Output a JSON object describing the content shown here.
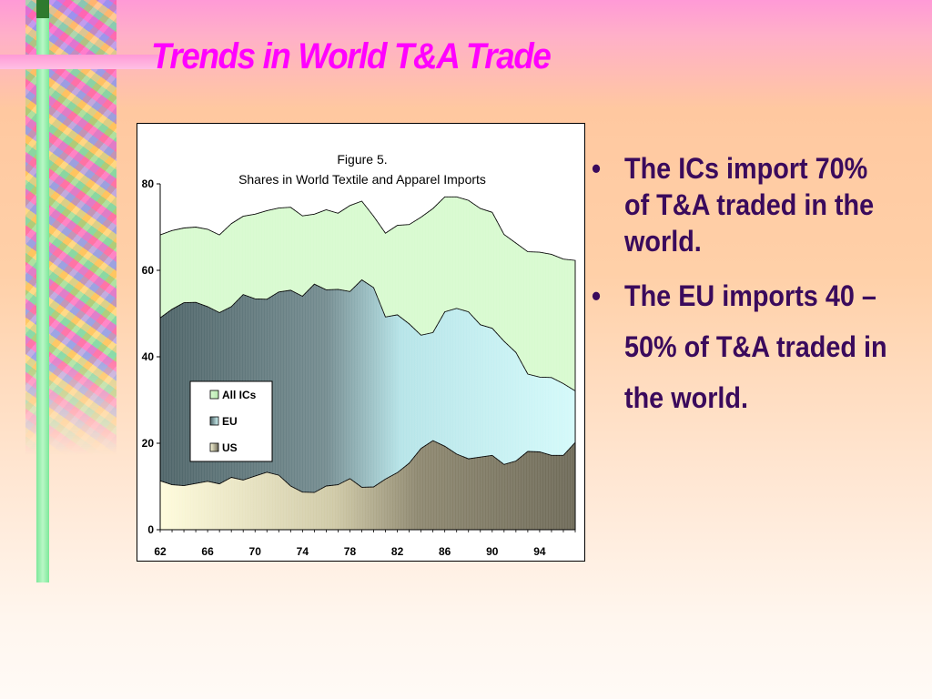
{
  "slide": {
    "title": "Trends in World T&A Trade",
    "bullets": [
      "The ICs import 70% of T&A traded in the world.",
      "The EU imports 40 – 50% of T&A traded in the world."
    ],
    "bullet_glyph": "•"
  },
  "colors": {
    "title": "#ff00ff",
    "bullet_text": "#3a0a5c",
    "all_ics": "#d8fad0",
    "eu_light": "#d4fafa",
    "eu_dark": "#4e6468",
    "us_light": "#fffcdc",
    "us_dark": "#6e6a58"
  },
  "chart_data": {
    "type": "area",
    "stacked": false,
    "title": "Figure 5.",
    "subtitle": "Shares in World Textile and Apparel Imports",
    "xlabel": "",
    "ylabel": "",
    "x": [
      62,
      63,
      64,
      65,
      66,
      67,
      68,
      69,
      70,
      71,
      72,
      73,
      74,
      75,
      76,
      77,
      78,
      79,
      80,
      81,
      82,
      83,
      84,
      85,
      86,
      87,
      88,
      89,
      90,
      91,
      92,
      93,
      94,
      95,
      96,
      97
    ],
    "x_tick_labels": [
      "62",
      "66",
      "70",
      "74",
      "78",
      "82",
      "86",
      "90",
      "94"
    ],
    "y_ticks": [
      0,
      20,
      40,
      60,
      80
    ],
    "ylim": [
      0,
      80
    ],
    "grid": false,
    "legend": "left-middle",
    "series": [
      {
        "name": "All ICs",
        "values": [
          68.2,
          69.2,
          69.8,
          70.0,
          69.5,
          68.2,
          70.8,
          72.5,
          73.0,
          73.8,
          74.4,
          74.6,
          72.6,
          73.0,
          74.0,
          73.2,
          75.0,
          76.0,
          72.5,
          68.6,
          70.4,
          70.6,
          72.3,
          74.3,
          77.0,
          77.0,
          76.2,
          74.3,
          73.4,
          68.3,
          66.3,
          64.3,
          64.2,
          63.7,
          62.6,
          62.3
        ]
      },
      {
        "name": "EU",
        "values": [
          49.0,
          51.0,
          52.5,
          52.6,
          51.6,
          50.2,
          51.6,
          54.4,
          53.4,
          53.3,
          55.0,
          55.4,
          54.0,
          56.8,
          55.5,
          55.6,
          55.1,
          57.8,
          56.0,
          49.2,
          49.7,
          47.6,
          45.0,
          45.6,
          50.4,
          51.2,
          50.4,
          47.4,
          46.6,
          43.6,
          41.0,
          36.0,
          35.3,
          35.2,
          33.8,
          32.1
        ]
      },
      {
        "name": "US",
        "values": [
          11.3,
          10.4,
          10.2,
          10.7,
          11.2,
          10.6,
          12.1,
          11.5,
          12.4,
          13.3,
          12.6,
          10.1,
          8.7,
          8.6,
          10.1,
          10.4,
          11.8,
          9.8,
          9.9,
          11.7,
          13.2,
          15.4,
          18.8,
          20.6,
          19.3,
          17.5,
          16.4,
          16.8,
          17.2,
          15.1,
          15.9,
          18.1,
          18.0,
          17.2,
          17.2,
          20.2
        ]
      }
    ]
  }
}
